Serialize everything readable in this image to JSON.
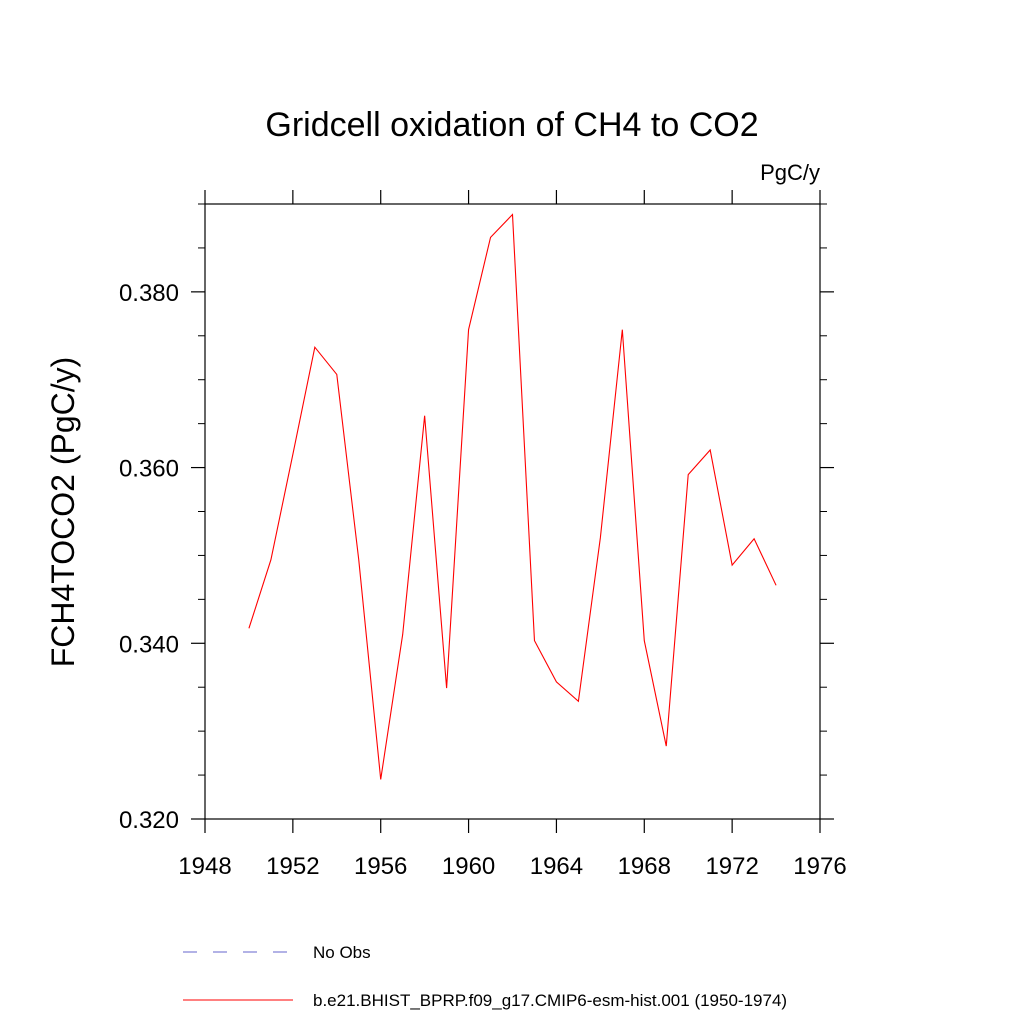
{
  "chart_data": {
    "type": "line",
    "title": "Gridcell oxidation of CH4 to CO2",
    "units": "PgC/y",
    "xlabel": "",
    "ylabel": "FCH4TOCO2  (PgC/y)",
    "xlim": [
      1948,
      1976
    ],
    "ylim": [
      0.32,
      0.39
    ],
    "xticks": [
      "1948",
      "1952",
      "1956",
      "1960",
      "1964",
      "1968",
      "1972",
      "1976"
    ],
    "yticks": [
      "0.320",
      "0.340",
      "0.360",
      "0.380"
    ],
    "x": [
      1950,
      1951,
      1952,
      1953,
      1954,
      1955,
      1956,
      1957,
      1958,
      1959,
      1960,
      1961,
      1962,
      1963,
      1964,
      1965,
      1966,
      1967,
      1968,
      1969,
      1970,
      1971,
      1972,
      1973,
      1974
    ],
    "series": [
      {
        "name": "b.e21.BHIST_BPRP.f09_g17.CMIP6-esm-hist.001 (1950-1974)",
        "color": "#ff0000",
        "style": "solid",
        "values": [
          0.3417,
          0.3495,
          0.3615,
          0.3737,
          0.3706,
          0.3495,
          0.3245,
          0.341,
          0.3659,
          0.3349,
          0.3757,
          0.3862,
          0.3888,
          0.3403,
          0.3356,
          0.3334,
          0.352,
          0.3757,
          0.3403,
          0.3283,
          0.3592,
          0.362,
          0.3489,
          0.3519,
          0.3466
        ]
      }
    ],
    "legend": [
      {
        "label": "No Obs",
        "color": "#6666cc",
        "style": "dashed"
      },
      {
        "label": "b.e21.BHIST_BPRP.f09_g17.CMIP6-esm-hist.001 (1950-1974)",
        "color": "#ff0000",
        "style": "solid"
      }
    ],
    "legend_position": "bottom"
  }
}
